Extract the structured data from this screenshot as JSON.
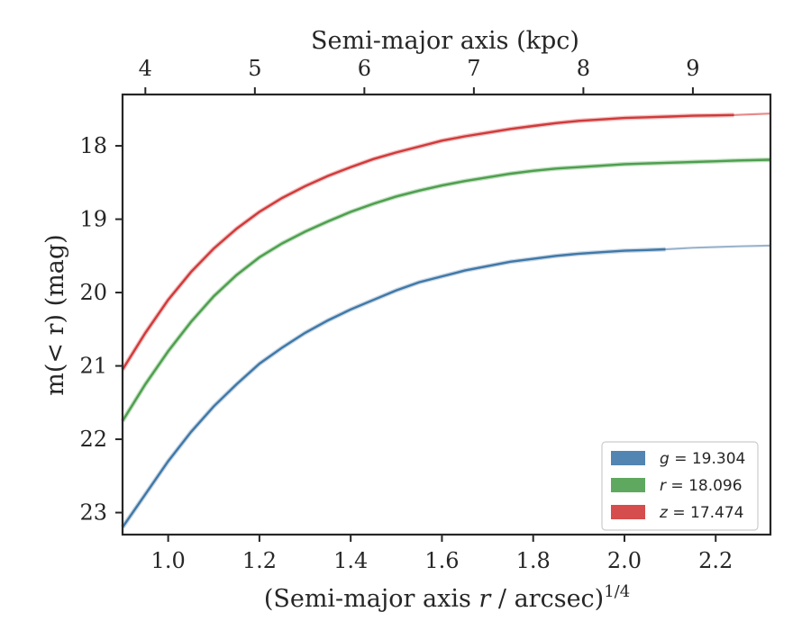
{
  "chart_data": {
    "type": "line",
    "xlabel": "(Semi-major axis r / arcsec)",
    "xlabel_exponent": "1/4",
    "ylabel": "m(< r) (mag)",
    "top_xlabel": "Semi-major axis (kpc)",
    "xlim": [
      0.9,
      2.32
    ],
    "ylim": [
      23.3,
      17.3
    ],
    "y_inverted": true,
    "xticks": [
      1.0,
      1.2,
      1.4,
      1.6,
      1.8,
      2.0,
      2.2
    ],
    "xtick_labels": [
      "1.0",
      "1.2",
      "1.4",
      "1.6",
      "1.8",
      "2.0",
      "2.2"
    ],
    "yticks": [
      18,
      19,
      20,
      21,
      22,
      23
    ],
    "ytick_labels": [
      "18",
      "19",
      "20",
      "21",
      "22",
      "23"
    ],
    "top_xticks": [
      4,
      5,
      6,
      7,
      8,
      9
    ],
    "top_xtick_labels": [
      "4",
      "5",
      "6",
      "7",
      "8",
      "9"
    ],
    "top_axis_positions": [
      0.95,
      1.19,
      1.43,
      1.67,
      1.91,
      2.15
    ],
    "grid": false,
    "legend_position": "lower-right",
    "series": [
      {
        "name": "g = 19.304",
        "legend_var": "g",
        "legend_value": "19.304",
        "color": "#3f78a8",
        "fit_color": "#9ab4cc",
        "x": [
          0.9,
          0.95,
          1.0,
          1.05,
          1.1,
          1.15,
          1.2,
          1.25,
          1.3,
          1.35,
          1.4,
          1.45,
          1.5,
          1.55,
          1.6,
          1.65,
          1.7,
          1.75,
          1.8,
          1.85,
          1.9,
          1.95,
          2.0,
          2.05,
          2.09
        ],
        "y": [
          23.2,
          22.75,
          22.3,
          21.9,
          21.55,
          21.25,
          20.97,
          20.75,
          20.55,
          20.38,
          20.23,
          20.1,
          19.97,
          19.86,
          19.78,
          19.7,
          19.64,
          19.58,
          19.54,
          19.5,
          19.47,
          19.45,
          19.43,
          19.42,
          19.41
        ],
        "fit_x": [
          2.09,
          2.15,
          2.2,
          2.25,
          2.32
        ],
        "fit_y": [
          19.41,
          19.39,
          19.38,
          19.37,
          19.36
        ]
      },
      {
        "name": "r = 18.096",
        "legend_var": "r",
        "legend_value": "18.096",
        "color": "#4e9e4e",
        "fit_color": "#8cc48c",
        "x": [
          0.9,
          0.95,
          1.0,
          1.05,
          1.1,
          1.15,
          1.2,
          1.25,
          1.3,
          1.35,
          1.4,
          1.45,
          1.5,
          1.55,
          1.6,
          1.65,
          1.7,
          1.75,
          1.8,
          1.85,
          1.9,
          1.95,
          2.0,
          2.05,
          2.1,
          2.15,
          2.2,
          2.25,
          2.32
        ],
        "y": [
          21.75,
          21.25,
          20.8,
          20.4,
          20.05,
          19.76,
          19.52,
          19.33,
          19.17,
          19.03,
          18.9,
          18.79,
          18.69,
          18.61,
          18.54,
          18.48,
          18.43,
          18.38,
          18.34,
          18.31,
          18.29,
          18.27,
          18.25,
          18.24,
          18.23,
          18.22,
          18.21,
          18.2,
          18.19
        ],
        "fit_x": [],
        "fit_y": []
      },
      {
        "name": "z = 17.474",
        "legend_var": "z",
        "legend_value": "17.474",
        "color": "#d03a3a",
        "fit_color": "#e88a8a",
        "x": [
          0.9,
          0.95,
          1.0,
          1.05,
          1.1,
          1.15,
          1.2,
          1.25,
          1.3,
          1.35,
          1.4,
          1.45,
          1.5,
          1.55,
          1.6,
          1.65,
          1.7,
          1.75,
          1.8,
          1.85,
          1.9,
          1.95,
          2.0,
          2.05,
          2.1,
          2.15,
          2.2,
          2.24
        ],
        "y": [
          21.05,
          20.55,
          20.1,
          19.72,
          19.4,
          19.13,
          18.9,
          18.71,
          18.55,
          18.41,
          18.29,
          18.18,
          18.09,
          18.01,
          17.93,
          17.87,
          17.82,
          17.77,
          17.73,
          17.69,
          17.66,
          17.64,
          17.62,
          17.61,
          17.6,
          17.59,
          17.585,
          17.58
        ],
        "fit_x": [
          2.24,
          2.28,
          2.32
        ],
        "fit_y": [
          17.58,
          17.57,
          17.56
        ]
      }
    ]
  }
}
